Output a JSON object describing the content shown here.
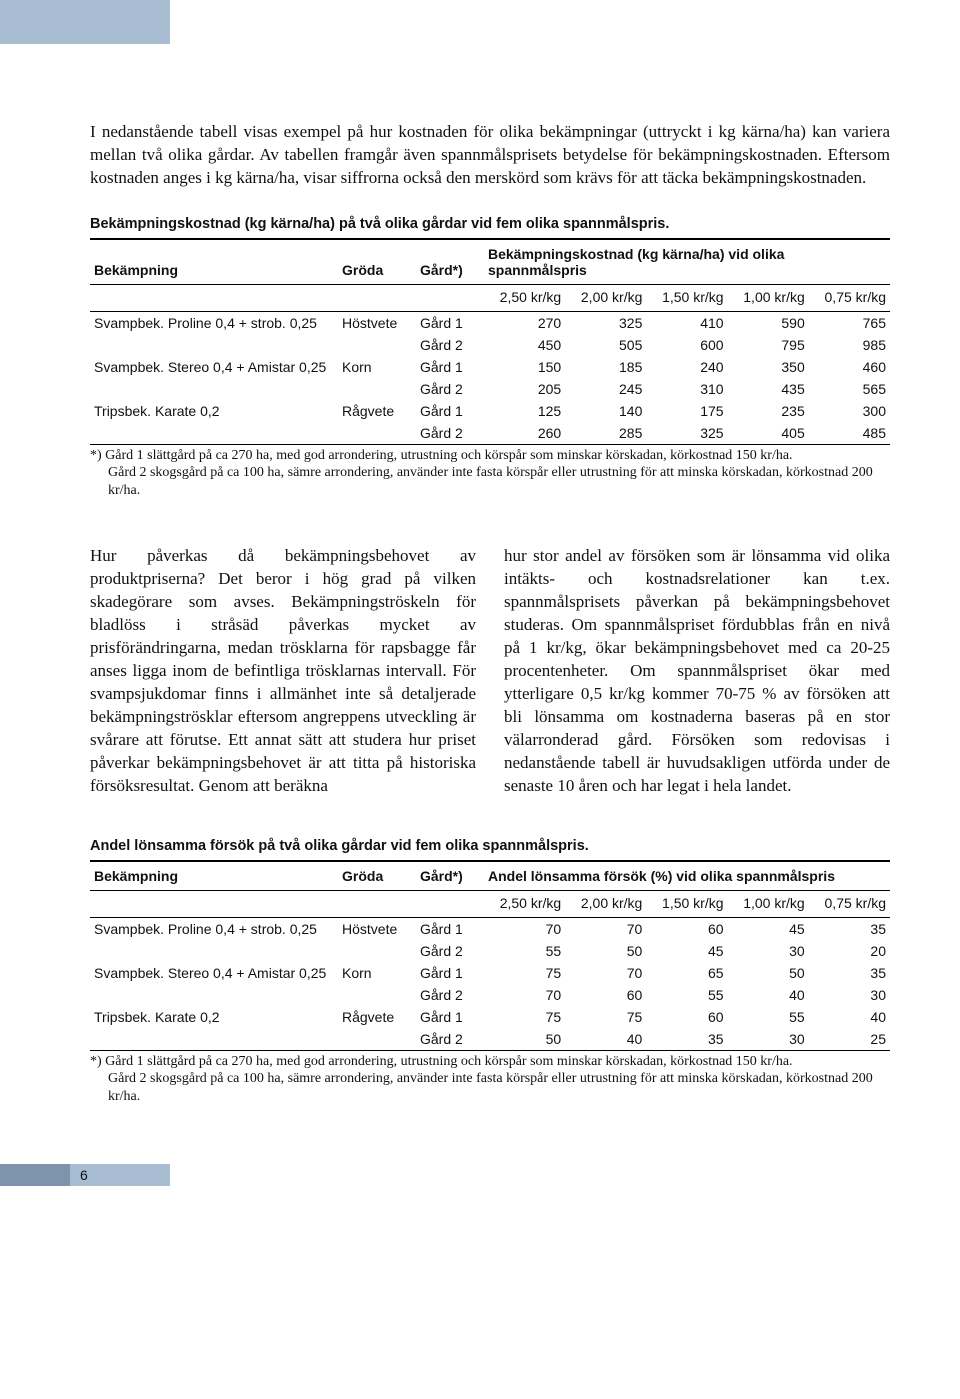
{
  "header_colors": {
    "blue": "#a8bdd1",
    "dark": "#7d94ac"
  },
  "intro": "I nedanstående tabell visas exempel på hur kostnaden för olika bekämpningar (uttryckt i kg kärna/ha) kan variera mellan två olika gårdar. Av tabellen framgår även spannmålsprisets betydelse för bekämpningskostnaden. Eftersom kostnaden anges i kg kärna/ha, visar siffrorna också den merskörd som krävs för att täcka bekämpningskostnaden.",
  "table1": {
    "caption": "Bekämpningskostnad (kg kärna/ha) på två olika gårdar vid fem olika spannmålspris.",
    "col_bek": "Bekämpning",
    "col_groda": "Gröda",
    "col_gard": "Gård*)",
    "col_span": "Bekämpningskostnad (kg kärna/ha) vid olika spannmålspris",
    "price_labels": [
      "2,50 kr/kg",
      "2,00 kr/kg",
      "1,50 kr/kg",
      "1,00 kr/kg",
      "0,75 kr/kg"
    ],
    "rows": [
      {
        "b": "Svampbek. Proline 0,4 + strob. 0,25",
        "g": "Höstvete",
        "f": "Gård 1",
        "v": [
          "270",
          "325",
          "410",
          "590",
          "765"
        ]
      },
      {
        "b": "",
        "g": "",
        "f": "Gård 2",
        "v": [
          "450",
          "505",
          "600",
          "795",
          "985"
        ]
      },
      {
        "b": "Svampbek. Stereo 0,4 + Amistar 0,25",
        "g": "Korn",
        "f": "Gård 1",
        "v": [
          "150",
          "185",
          "240",
          "350",
          "460"
        ]
      },
      {
        "b": "",
        "g": "",
        "f": "Gård 2",
        "v": [
          "205",
          "245",
          "310",
          "435",
          "565"
        ]
      },
      {
        "b": "Tripsbek. Karate 0,2",
        "g": "Rågvete",
        "f": "Gård 1",
        "v": [
          "125",
          "140",
          "175",
          "235",
          "300"
        ]
      },
      {
        "b": "",
        "g": "",
        "f": "Gård 2",
        "v": [
          "260",
          "285",
          "325",
          "405",
          "485"
        ]
      }
    ],
    "footnote_a": "*) Gård 1 slättgård på ca 270 ha, med god arrondering, utrustning och körspår som minskar körskadan, körkostnad 150 kr/ha.",
    "footnote_b": "Gård 2 skogsgård på ca 100 ha, sämre arrondering, använder inte fasta körspår eller utrustning för att minska körskadan, körkostnad 200 kr/ha."
  },
  "body_left": "Hur påverkas då bekämpningsbehovet av produktpriserna? Det beror i hög grad på vilken skadegörare som avses. Bekämpningströskeln för bladlöss i stråsäd påverkas mycket av prisförändringarna, medan trösklarna för rapsbagge får anses ligga inom de befintliga trösklarnas intervall. För svampsjukdomar finns i allmänhet inte så detaljerade bekämpningströsklar eftersom angreppens utveckling är svårare att förutse. Ett annat sätt att studera hur priset påverkar bekämpningsbehovet är att titta på historiska försöksresultat. Genom att beräkna",
  "body_right": "hur stor andel av försöken som är lönsamma vid olika intäkts- och kostnadsrelationer kan t.ex. spannmålsprisets påverkan på bekämpningsbehovet studeras. Om spannmålspriset fördubblas från en nivå på 1 kr/kg, ökar bekämpningsbehovet med ca 20-25 procentenheter. Om spannmålspriset ökar med ytterligare 0,5 kr/kg kommer 70-75 % av försöken att bli lönsamma om kostnaderna baseras på en stor välarronderad gård. Försöken som redovisas i nedanstående tabell är huvudsakligen utförda under de senaste 10 åren och har legat i hela landet.",
  "table2": {
    "caption": "Andel lönsamma försök på två olika gårdar vid fem olika spannmålspris.",
    "col_bek": "Bekämpning",
    "col_groda": "Gröda",
    "col_gard": "Gård*)",
    "col_span": "Andel lönsamma försök (%) vid olika spannmålspris",
    "price_labels": [
      "2,50 kr/kg",
      "2,00 kr/kg",
      "1,50 kr/kg",
      "1,00 kr/kg",
      "0,75 kr/kg"
    ],
    "rows": [
      {
        "b": "Svampbek. Proline 0,4 + strob. 0,25",
        "g": "Höstvete",
        "f": "Gård 1",
        "v": [
          "70",
          "70",
          "60",
          "45",
          "35"
        ]
      },
      {
        "b": "",
        "g": "",
        "f": "Gård 2",
        "v": [
          "55",
          "50",
          "45",
          "30",
          "20"
        ]
      },
      {
        "b": "Svampbek. Stereo 0,4 + Amistar 0,25",
        "g": "Korn",
        "f": "Gård 1",
        "v": [
          "75",
          "70",
          "65",
          "50",
          "35"
        ]
      },
      {
        "b": "",
        "g": "",
        "f": "Gård 2",
        "v": [
          "70",
          "60",
          "55",
          "40",
          "30"
        ]
      },
      {
        "b": "Tripsbek. Karate 0,2",
        "g": "Rågvete",
        "f": "Gård 1",
        "v": [
          "75",
          "75",
          "60",
          "55",
          "40"
        ]
      },
      {
        "b": "",
        "g": "",
        "f": "Gård 2",
        "v": [
          "50",
          "40",
          "35",
          "30",
          "25"
        ]
      }
    ],
    "footnote_a": "*) Gård 1 slättgård på ca 270 ha, med god arrondering, utrustning och körspår som minskar körskadan, körkostnad 150 kr/ha.",
    "footnote_b": "Gård 2 skogsgård på ca 100 ha, sämre arrondering, använder inte fasta körspår eller utrustning för att minska körskadan, körkostnad 200 kr/ha."
  },
  "page_number": "6"
}
